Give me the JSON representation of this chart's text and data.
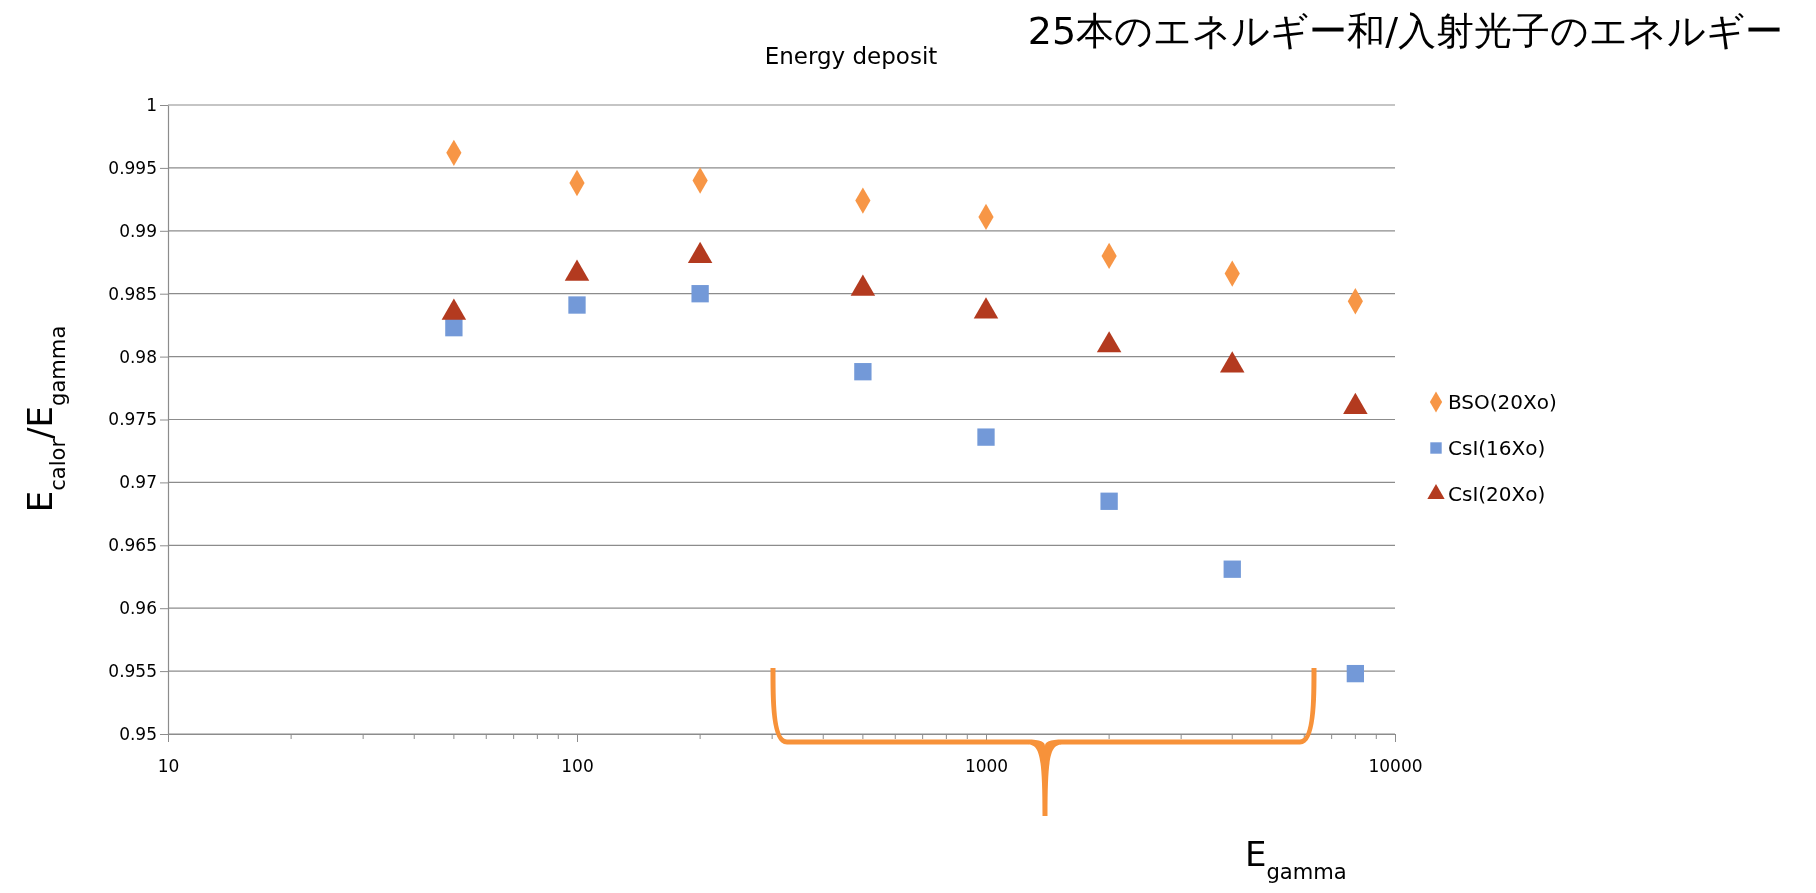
{
  "chart_data": {
    "type": "scatter",
    "title": "Energy deposit",
    "annotations": [
      "25本のエネルギー和/入射光子のエネルギー"
    ],
    "xlabel": "E$_{gamma}$",
    "ylabel": "E$_{calor}$/E$_{gamma}$",
    "log": "x",
    "xlim": [
      10,
      10000
    ],
    "xticks": [
      10,
      100,
      1000,
      10000
    ],
    "ylim": [
      0.95,
      1
    ],
    "yticks": [
      0.95,
      0.955,
      0.96,
      0.965,
      0.97,
      0.975,
      0.98,
      0.985,
      0.99,
      0.995,
      1
    ],
    "grid": "y",
    "legend": "right",
    "x": [
      50,
      100,
      200,
      500,
      1000,
      2000,
      4000,
      8000
    ],
    "series": [
      {
        "name": "BSO(20Xo)",
        "color": "#f79646",
        "marker": "diamond",
        "values": [
          0.9962,
          0.9938,
          0.994,
          0.9924,
          0.9911,
          0.988,
          0.9866,
          0.9844
        ]
      },
      {
        "name": "CsI(16Xo)",
        "color": "#7399d8",
        "marker": "square",
        "values": [
          0.9823,
          0.9841,
          0.985,
          0.9788,
          0.9736,
          0.9685,
          0.9631,
          0.9548
        ]
      },
      {
        "name": "CsI(20Xo)",
        "color": "#b33a1f",
        "marker": "triangle",
        "values": [
          0.9835,
          0.9866,
          0.988,
          0.9854,
          0.9836,
          0.9809,
          0.9793,
          0.976
        ]
      }
    ]
  }
}
